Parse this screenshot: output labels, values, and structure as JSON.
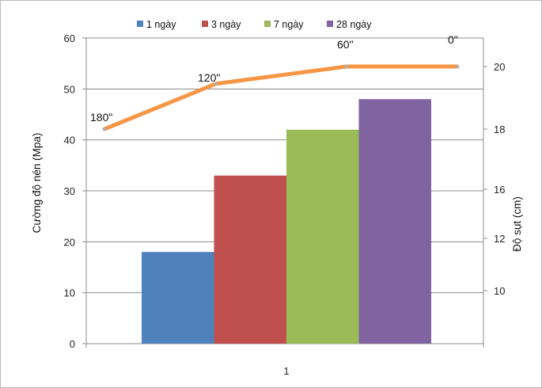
{
  "chart_data": {
    "type": "bar",
    "categories": [
      "1"
    ],
    "series": [
      {
        "name": "1 ngày",
        "values": [
          18
        ],
        "color": "#4f81bd"
      },
      {
        "name": "3 ngày",
        "values": [
          33
        ],
        "color": "#c0504d"
      },
      {
        "name": "7 ngày",
        "values": [
          42
        ],
        "color": "#9bbb59"
      },
      {
        "name": "28 ngày",
        "values": [
          48
        ],
        "color": "#8064a2"
      }
    ],
    "line_series": {
      "axis": "secondary",
      "color": "#f79646",
      "values": [
        18.0,
        19.45,
        20.25,
        20.35
      ],
      "labels": [
        "180\"",
        "120\"",
        "60\"",
        "0\""
      ]
    },
    "ylabel": "Cường độ nén (Mpa)",
    "ylabel_right": "Độ sụt (cm)",
    "ylim": [
      0,
      60
    ],
    "yticks": [
      "0",
      "10",
      "20",
      "30",
      "40",
      "50",
      "60"
    ],
    "yticks_right": [
      "10",
      "12",
      "16",
      "18",
      "20"
    ],
    "legend_position": "top",
    "grid": true
  }
}
